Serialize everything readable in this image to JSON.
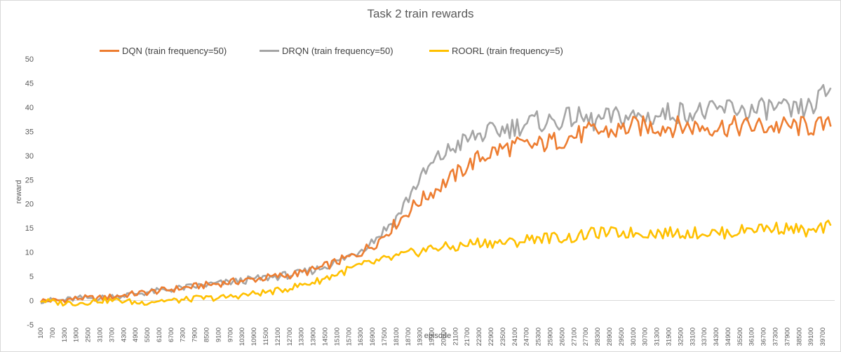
{
  "chart_data": {
    "type": "line",
    "title": "Task 2 train rewards",
    "xlabel": "episode",
    "ylabel": "reward",
    "ylim": [
      -5,
      50
    ],
    "yticks": [
      -5,
      0,
      5,
      10,
      15,
      20,
      25,
      30,
      35,
      40,
      45,
      50
    ],
    "xlim": [
      100,
      40300
    ],
    "xtick_labels": [
      "100",
      "700",
      "1300",
      "1900",
      "2500",
      "3100",
      "3700",
      "4300",
      "4900",
      "5500",
      "6100",
      "6700",
      "7300",
      "7900",
      "8500",
      "9100",
      "9700",
      "10300",
      "10900",
      "11500",
      "12100",
      "12700",
      "13300",
      "13900",
      "14500",
      "15100",
      "15700",
      "16300",
      "16900",
      "17500",
      "18100",
      "18700",
      "19300",
      "19900",
      "20500",
      "21100",
      "21700",
      "22300",
      "22900",
      "23500",
      "24100",
      "24700",
      "25300",
      "25900",
      "26500",
      "27100",
      "27700",
      "28300",
      "28900",
      "29500",
      "30100",
      "30700",
      "31300",
      "31900",
      "32500",
      "33100",
      "33700",
      "34300",
      "34900",
      "35500",
      "36100",
      "36700",
      "37300",
      "37900",
      "38500",
      "39100",
      "39700"
    ],
    "x": [
      100,
      1100,
      2100,
      3100,
      4100,
      5100,
      6100,
      7100,
      8100,
      9100,
      10100,
      11100,
      12100,
      13100,
      14100,
      15100,
      16100,
      17100,
      18100,
      19100,
      20100,
      21100,
      22100,
      23100,
      24100,
      25100,
      26100,
      27100,
      28100,
      29100,
      30100,
      31100,
      32100,
      33100,
      34100,
      35100,
      36100,
      37100,
      38100,
      39100,
      40100
    ],
    "series": [
      {
        "name": "DQN (train frequency=50)",
        "color": "#ed7d31",
        "values": [
          0,
          0,
          0.5,
          0.5,
          1,
          1.5,
          2,
          2.5,
          3,
          3.5,
          4,
          4.5,
          5,
          5.5,
          6.5,
          8,
          9.5,
          12,
          16,
          20,
          23,
          26,
          29,
          31,
          32,
          32,
          33,
          34,
          35,
          35,
          36,
          36,
          36,
          36,
          36,
          36,
          36,
          36,
          36,
          36,
          36
        ]
      },
      {
        "name": "DRQN (train frequency=50)",
        "color": "#a5a5a5",
        "values": [
          0,
          0,
          0.5,
          0.5,
          1,
          1.5,
          2,
          2.5,
          3,
          3.5,
          4,
          4.5,
          5,
          5.5,
          6.5,
          8,
          10,
          13,
          17,
          24,
          29,
          32,
          34,
          35,
          36,
          37,
          37,
          38,
          37,
          38,
          38,
          38,
          39,
          39,
          39,
          40,
          39,
          40,
          39,
          40,
          44
        ]
      },
      {
        "name": "ROORL (train frequency=5)",
        "color": "#ffc000",
        "values": [
          0,
          -0.5,
          -0.5,
          0,
          0,
          -0.5,
          0,
          0,
          0.5,
          0.5,
          1,
          1.5,
          2,
          3,
          4,
          5.5,
          7,
          8,
          9,
          10,
          11,
          11,
          12,
          12,
          12,
          13,
          13,
          13,
          14,
          14,
          14,
          14,
          14,
          14,
          14,
          14,
          15,
          15,
          15,
          14,
          15.5
        ]
      }
    ]
  }
}
